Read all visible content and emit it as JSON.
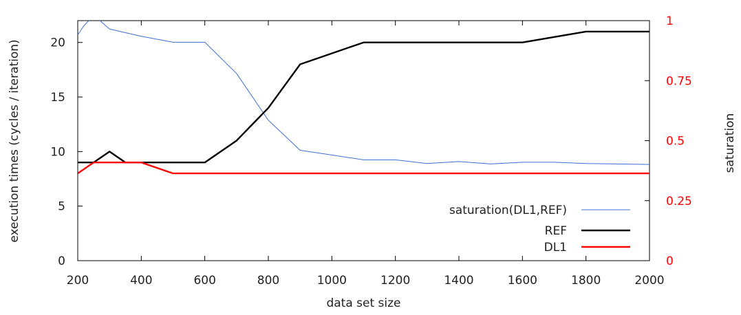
{
  "chart_data": {
    "type": "line",
    "xlabel": "data set size",
    "ylabel": "execution times (cycles / iteration)",
    "y2label": "saturation",
    "xlim": [
      200,
      2000
    ],
    "ylim": [
      0,
      22
    ],
    "y2lim": [
      0,
      1
    ],
    "x_ticks": [
      200,
      400,
      600,
      800,
      1000,
      1200,
      1400,
      1600,
      1800,
      2000
    ],
    "y_ticks": [
      0,
      5,
      10,
      15,
      20
    ],
    "y2_ticks": [
      0,
      0.25,
      0.5,
      0.75,
      1
    ],
    "y2_tick_labels": [
      "0",
      "0.25",
      "0.5",
      "0.75",
      "1"
    ],
    "grid": false,
    "legend_position": "bottom-right",
    "colors": {
      "right_axis": "#ff0000"
    },
    "series": [
      {
        "name": "saturation(DL1,REF)",
        "axis": "right",
        "color": "#3b6fd6",
        "width": 1,
        "x": [
          200,
          220,
          250,
          270,
          300,
          400,
          500,
          600,
          700,
          800,
          900,
          1000,
          1100,
          1200,
          1300,
          1400,
          1500,
          1600,
          1700,
          1800,
          1900,
          2000
        ],
        "y": [
          0.94,
          0.98,
          1.02,
          1.0,
          0.965,
          0.935,
          0.91,
          0.91,
          0.78,
          0.585,
          0.46,
          0.44,
          0.42,
          0.42,
          0.405,
          0.413,
          0.403,
          0.41,
          0.41,
          0.405,
          0.403,
          0.401
        ]
      },
      {
        "name": "REF",
        "axis": "left",
        "color": "#000000",
        "width": 2.4,
        "x": [
          200,
          250,
          300,
          350,
          400,
          500,
          600,
          700,
          800,
          900,
          1000,
          1100,
          1200,
          1300,
          1400,
          1500,
          1600,
          1700,
          1800,
          1900,
          2000
        ],
        "y": [
          9,
          9,
          10,
          9,
          9,
          9,
          9,
          11,
          14,
          18,
          19,
          20,
          20,
          20,
          20,
          20,
          20,
          20.5,
          21,
          21,
          21
        ]
      },
      {
        "name": "DL1",
        "axis": "left",
        "color": "#ff0000",
        "width": 2.4,
        "x": [
          200,
          250,
          300,
          400,
          500,
          600,
          800,
          1000,
          1200,
          1400,
          1600,
          1800,
          2000
        ],
        "y": [
          8,
          9,
          9,
          9,
          8,
          8,
          8,
          8,
          8,
          8,
          8,
          8,
          8
        ]
      }
    ]
  }
}
